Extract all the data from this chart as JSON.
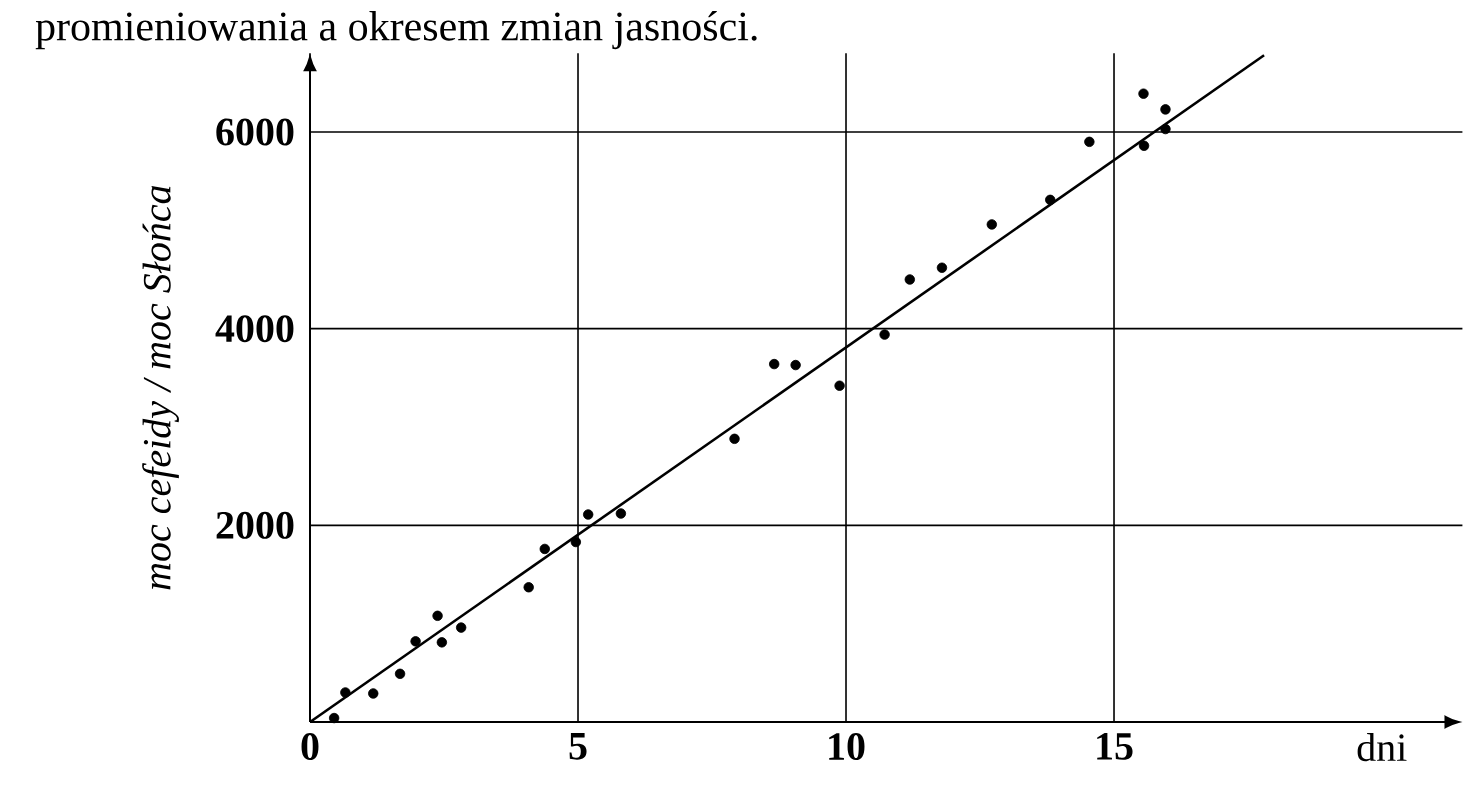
{
  "chart_data": {
    "type": "scatter",
    "xlabel": "dni",
    "ylabel": "moc cefeidy / moc Słońca",
    "annotations": [
      "promieniowania a okresem zmian jasności."
    ],
    "xlim": [
      0,
      21.5
    ],
    "ylim": [
      0,
      6800
    ],
    "xticks": [
      0,
      5,
      10,
      15
    ],
    "yticks": [
      2000,
      4000,
      6000
    ],
    "grid": true,
    "marker": "circle",
    "series": [
      {
        "color": "#000000",
        "x": [
          0.45,
          0.66,
          1.18,
          1.68,
          1.97,
          2.38,
          2.46,
          2.82,
          4.08,
          4.38,
          4.96,
          5.19,
          5.8,
          7.92,
          8.66,
          9.06,
          9.88,
          10.72,
          11.19,
          11.79,
          12.72,
          13.81,
          14.54,
          15.55,
          15.96,
          15.96,
          15.56
        ],
        "values": [
          40,
          300,
          290,
          490,
          820,
          1080,
          810,
          960,
          1370,
          1760,
          1830,
          2110,
          2120,
          2880,
          3640,
          3630,
          3420,
          3940,
          4500,
          4620,
          5060,
          5310,
          5900,
          6390,
          6230,
          6030,
          5860
        ]
      },
      {
        "type": "line",
        "color": "#000000",
        "marker": "none",
        "x": [
          0,
          17.8
        ],
        "values": [
          0,
          6780
        ]
      }
    ]
  }
}
